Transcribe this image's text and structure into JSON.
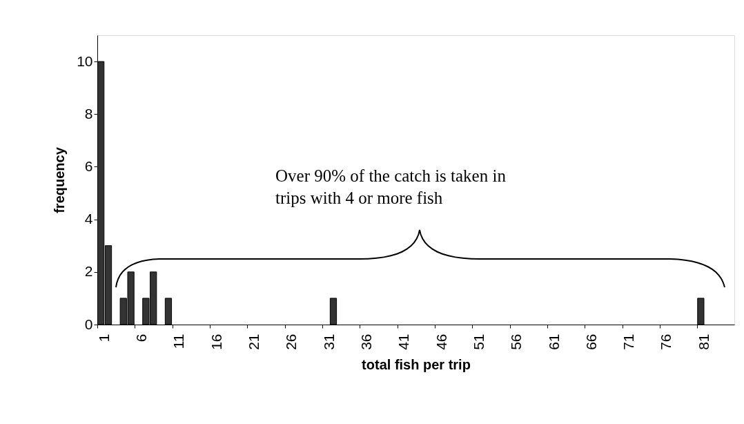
{
  "chart_data": {
    "type": "bar",
    "xlabel": "total fish per trip",
    "ylabel": "frequency",
    "categories": [
      "1",
      null,
      null,
      null,
      null,
      "6",
      null,
      null,
      null,
      null,
      "11",
      null,
      null,
      null,
      null,
      "16",
      null,
      null,
      null,
      null,
      "21",
      null,
      null,
      null,
      null,
      "26",
      null,
      null,
      null,
      null,
      "31",
      null,
      null,
      null,
      null,
      "36",
      null,
      null,
      null,
      null,
      "41",
      null,
      null,
      null,
      null,
      "46",
      null,
      null,
      null,
      null,
      "51",
      null,
      null,
      null,
      null,
      "56",
      null,
      null,
      null,
      null,
      "61",
      null,
      null,
      null,
      null,
      "66",
      null,
      null,
      null,
      null,
      "71",
      null,
      null,
      null,
      null,
      "76",
      null,
      null,
      null,
      null,
      "81",
      null,
      null,
      null,
      null
    ],
    "values": [
      10,
      3,
      0,
      1,
      2,
      0,
      1,
      2,
      0,
      1,
      0,
      0,
      0,
      0,
      0,
      0,
      0,
      0,
      0,
      0,
      0,
      0,
      0,
      0,
      0,
      0,
      0,
      0,
      0,
      0,
      0,
      1,
      0,
      0,
      0,
      0,
      0,
      0,
      0,
      0,
      0,
      0,
      0,
      0,
      0,
      0,
      0,
      0,
      0,
      0,
      0,
      0,
      0,
      0,
      0,
      0,
      0,
      0,
      0,
      0,
      0,
      0,
      0,
      0,
      0,
      0,
      0,
      0,
      0,
      0,
      0,
      0,
      0,
      0,
      0,
      0,
      0,
      0,
      0,
      0,
      1,
      0,
      0,
      0,
      0
    ],
    "color": "#333333",
    "ylim": [
      0,
      11
    ],
    "yticks": [
      0,
      2,
      4,
      6,
      8,
      10
    ],
    "grid": false,
    "annotations": [
      "Over 90% of the catch is taken in\ntrips with 4 or more fish"
    ]
  }
}
